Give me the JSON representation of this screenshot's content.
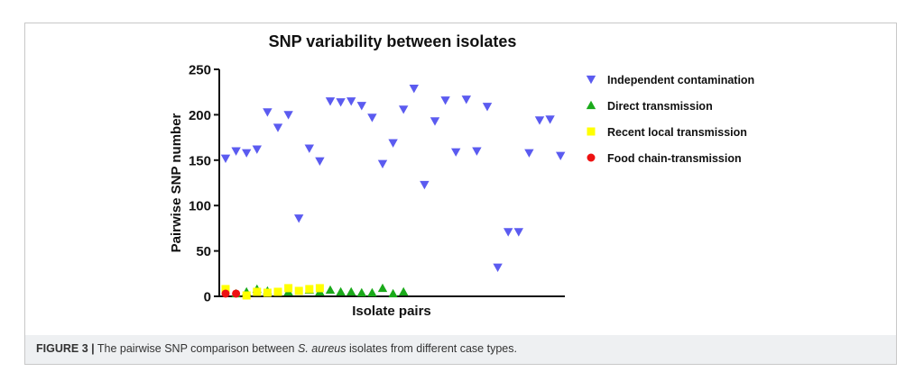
{
  "caption": {
    "label": "FIGURE 3 |",
    "pre": "The pairwise SNP comparison between ",
    "species": "S. aureus",
    "post": " isolates from different case types."
  },
  "chart_data": {
    "type": "scatter",
    "title": "SNP variability between isolates",
    "xlabel": "Isolate pairs",
    "ylabel": "Pairwise SNP number",
    "ylim": [
      0,
      250
    ],
    "yticks": [
      0,
      50,
      100,
      150,
      200,
      250
    ],
    "xlim": [
      0,
      37
    ],
    "grid": false,
    "legend_position": "right",
    "series": [
      {
        "name": "Independent contamination",
        "marker": "triangle-down",
        "color": "#5b5bf0",
        "points": [
          [
            0,
            152
          ],
          [
            1,
            160
          ],
          [
            2,
            158
          ],
          [
            3,
            162
          ],
          [
            4,
            203
          ],
          [
            5,
            186
          ],
          [
            6,
            200
          ],
          [
            7,
            86
          ],
          [
            8,
            163
          ],
          [
            9,
            149
          ],
          [
            10,
            215
          ],
          [
            11,
            214
          ],
          [
            12,
            215
          ],
          [
            13,
            210
          ],
          [
            14,
            197
          ],
          [
            15,
            146
          ],
          [
            16,
            169
          ],
          [
            17,
            206
          ],
          [
            18,
            229
          ],
          [
            19,
            123
          ],
          [
            20,
            193
          ],
          [
            21,
            216
          ],
          [
            22,
            159
          ],
          [
            23,
            217
          ],
          [
            24,
            160
          ],
          [
            25,
            209
          ],
          [
            26,
            32
          ],
          [
            27,
            71
          ],
          [
            28,
            71
          ],
          [
            29,
            158
          ],
          [
            30,
            194
          ],
          [
            31,
            195
          ],
          [
            32,
            155
          ]
        ]
      },
      {
        "name": "Direct transmission",
        "marker": "triangle-up",
        "color": "#1aaa1a",
        "points": [
          [
            1,
            3
          ],
          [
            2,
            5
          ],
          [
            3,
            8
          ],
          [
            4,
            6
          ],
          [
            6,
            5
          ],
          [
            8,
            7
          ],
          [
            9,
            5
          ],
          [
            10,
            7
          ],
          [
            11,
            5
          ],
          [
            12,
            5
          ],
          [
            13,
            4
          ],
          [
            14,
            4
          ],
          [
            15,
            9
          ],
          [
            16,
            3
          ],
          [
            17,
            5
          ]
        ]
      },
      {
        "name": "Recent local transmission",
        "marker": "square",
        "color": "#ffff00",
        "points": [
          [
            0,
            8
          ],
          [
            2,
            1
          ],
          [
            3,
            5
          ],
          [
            4,
            4
          ],
          [
            5,
            5
          ],
          [
            6,
            9
          ],
          [
            7,
            6
          ],
          [
            8,
            8
          ],
          [
            9,
            9
          ]
        ]
      },
      {
        "name": "Food chain-transmission",
        "marker": "circle",
        "color": "#ee1111",
        "points": [
          [
            0,
            3
          ],
          [
            1,
            3
          ]
        ]
      }
    ]
  }
}
